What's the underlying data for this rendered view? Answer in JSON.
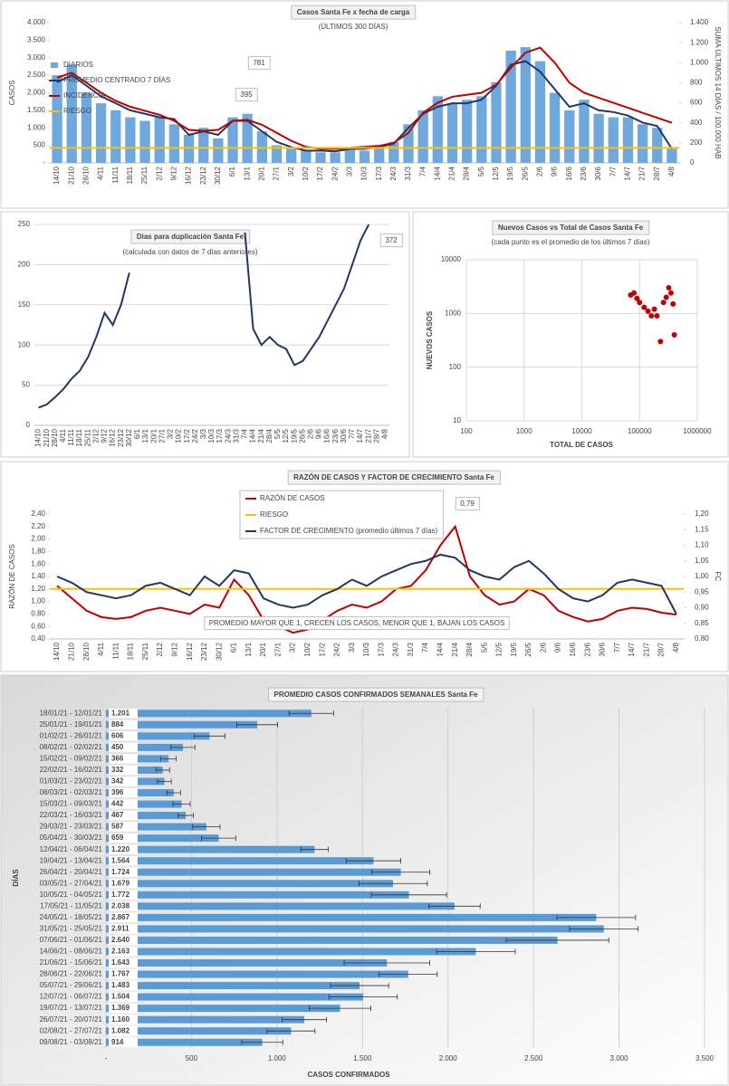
{
  "chart_data": [
    {
      "type": "combo",
      "title": "Casos Santa Fe x fecha de carga",
      "subtitle": "(ÚLTIMOS 300 DÍAS)",
      "y_label": "CASOS",
      "y2_label": "SUMA ÚLTIMOS 14 DÍAS / 100.000 HAB",
      "categories": [
        "14/10",
        "21/10",
        "28/10",
        "4/11",
        "11/11",
        "18/11",
        "25/11",
        "2/12",
        "9/12",
        "16/12",
        "23/12",
        "30/12",
        "6/1",
        "13/1",
        "20/1",
        "27/1",
        "3/2",
        "10/2",
        "17/2",
        "24/2",
        "3/3",
        "10/3",
        "17/3",
        "24/3",
        "31/3",
        "7/4",
        "14/4",
        "21/4",
        "28/4",
        "5/5",
        "12/5",
        "19/5",
        "26/5",
        "2/6",
        "9/6",
        "16/6",
        "23/6",
        "30/6",
        "7/7",
        "14/7",
        "21/7",
        "28/7",
        "4/8"
      ],
      "series": [
        {
          "name": "DIARIOS",
          "type": "bar",
          "color": "#6fa8dc",
          "values": [
            2500,
            2800,
            2000,
            1700,
            1500,
            1300,
            1200,
            1300,
            1100,
            800,
            1000,
            700,
            1300,
            1400,
            900,
            500,
            400,
            350,
            300,
            300,
            400,
            350,
            450,
            600,
            1100,
            1500,
            1900,
            1700,
            1800,
            1900,
            2300,
            3200,
            3300,
            2900,
            2000,
            1500,
            1800,
            1400,
            1300,
            1300,
            1100,
            1000,
            400
          ]
        },
        {
          "name": "PROMEDIO CENTRADO 7 DÍAS",
          "type": "line",
          "color": "#1f3864",
          "values": [
            2300,
            2500,
            2200,
            1900,
            1700,
            1500,
            1400,
            1300,
            1250,
            800,
            900,
            800,
            1200,
            1200,
            900,
            600,
            450,
            350,
            350,
            330,
            400,
            400,
            450,
            550,
            1000,
            1400,
            1600,
            1700,
            1700,
            1800,
            2200,
            2800,
            2900,
            2600,
            2100,
            1600,
            1700,
            1500,
            1450,
            1350,
            1150,
            1050,
            400
          ]
        },
        {
          "name": "INCIDENCIA",
          "type": "line",
          "axis": "y2",
          "color": "#c00000",
          "values": [
            850,
            900,
            800,
            700,
            620,
            560,
            520,
            480,
            420,
            330,
            320,
            330,
            420,
            430,
            380,
            300,
            220,
            160,
            140,
            140,
            150,
            160,
            170,
            200,
            300,
            500,
            600,
            660,
            680,
            700,
            780,
            950,
            1100,
            1150,
            1000,
            800,
            700,
            650,
            600,
            550,
            500,
            450,
            400
          ]
        },
        {
          "name": "RIESGO",
          "type": "hline",
          "color": "#ffc000",
          "value": 430
        }
      ],
      "ylim": [
        0,
        4000
      ],
      "yticks": [
        {
          "value": 0,
          "label": "-"
        },
        500,
        {
          "value": 1000,
          "label": "1.000"
        },
        {
          "value": 1500,
          "label": "1.500"
        },
        {
          "value": 2000,
          "label": "2.000"
        },
        {
          "value": 2500,
          "label": "2.500"
        },
        {
          "value": 3000,
          "label": "3.000"
        },
        {
          "value": 3500,
          "label": "3.500"
        },
        {
          "value": 4000,
          "label": "4.000"
        }
      ],
      "y2lim": [
        0,
        1400
      ],
      "y2ticks": [
        0,
        200,
        400,
        600,
        800,
        {
          "value": 1000,
          "label": "1.000"
        },
        {
          "value": 1200,
          "label": "1.200"
        },
        {
          "value": 1400,
          "label": "1.400"
        }
      ],
      "grid": false,
      "legend": "top-left",
      "annotations": [
        "781",
        "395"
      ]
    },
    {
      "type": "line",
      "title": "Dias para duplicación Santa Fe",
      "subtitle": "(calculada con datos de 7 días anteriores)",
      "categories": [
        "14/10",
        "21/10",
        "28/10",
        "4/11",
        "11/11",
        "18/11",
        "25/11",
        "2/12",
        "9/12",
        "16/12",
        "23/12",
        "30/12",
        "6/1",
        "13/1",
        "20/1",
        "27/1",
        "3/2",
        "10/2",
        "17/2",
        "24/2",
        "3/3",
        "10/3",
        "17/3",
        "24/3",
        "31/3",
        "7/4",
        "14/4",
        "21/4",
        "28/4",
        "5/5",
        "12/5",
        "19/5",
        "26/5",
        "2/6",
        "9/6",
        "16/6",
        "23/6",
        "30/6",
        "7/7",
        "14/7",
        "21/7",
        "28/7",
        "4/8"
      ],
      "values": [
        22,
        26,
        35,
        45,
        58,
        68,
        85,
        110,
        140,
        125,
        150,
        190,
        null,
        null,
        null,
        null,
        null,
        null,
        null,
        null,
        null,
        null,
        null,
        null,
        null,
        240,
        120,
        100,
        110,
        100,
        95,
        75,
        80,
        95,
        110,
        130,
        150,
        170,
        200,
        230,
        250,
        null,
        null
      ],
      "color": "#1f3864",
      "ylim": [
        0,
        250
      ],
      "yticks": [
        0,
        50,
        100,
        150,
        200,
        250
      ],
      "grid": true,
      "annotations": [
        "372"
      ]
    },
    {
      "type": "scatter",
      "title": "Nuevos Casos vs Total de Casos Santa Fe",
      "subtitle": "(cada punto es el promedio de los últimos 7 días)",
      "x_label": "TOTAL DE CASOS",
      "y_label": "NUEVOS CASOS",
      "x": [
        70000,
        80000,
        90000,
        100000,
        120000,
        140000,
        160000,
        180000,
        200000,
        230000,
        260000,
        290000,
        320000,
        350000,
        380000,
        400000
      ],
      "y": [
        2200,
        2400,
        1900,
        1600,
        1300,
        1100,
        900,
        1200,
        900,
        300,
        1600,
        2000,
        3000,
        2400,
        1500,
        400
      ],
      "color": "#c00000",
      "log_x": true,
      "log_y": true,
      "xlim": [
        100,
        1000000
      ],
      "xticks": [
        100,
        1000,
        10000,
        100000,
        1000000
      ],
      "ylim": [
        10,
        10000
      ],
      "yticks": [
        10,
        100,
        1000,
        10000
      ],
      "grid": true
    },
    {
      "type": "combo",
      "title": "RAZÓN DE CASOS Y FACTOR DE CRECIMIENTO Santa Fe",
      "y_label": "RAZÓN DE CASOS",
      "y2_label": "FC",
      "categories": [
        "14/10",
        "21/10",
        "28/10",
        "4/11",
        "11/11",
        "18/11",
        "25/11",
        "2/12",
        "9/12",
        "16/12",
        "23/12",
        "30/12",
        "6/1",
        "13/1",
        "20/1",
        "27/1",
        "3/2",
        "10/2",
        "17/2",
        "24/2",
        "3/3",
        "10/3",
        "17/3",
        "24/3",
        "31/3",
        "7/4",
        "14/4",
        "21/4",
        "28/4",
        "5/5",
        "12/5",
        "19/5",
        "26/5",
        "2/6",
        "9/6",
        "16/6",
        "23/6",
        "30/6",
        "7/7",
        "14/7",
        "21/7",
        "28/7",
        "4/8"
      ],
      "series": [
        {
          "name": "RAZÓN DE CASOS",
          "type": "line",
          "color": "#c00000",
          "values": [
            1.25,
            1.05,
            0.85,
            0.75,
            0.72,
            0.75,
            0.85,
            0.9,
            0.85,
            0.8,
            0.95,
            0.9,
            1.35,
            1.1,
            0.7,
            0.6,
            0.5,
            0.55,
            0.7,
            0.85,
            0.95,
            0.9,
            1.0,
            1.2,
            1.25,
            1.5,
            1.9,
            2.2,
            1.4,
            1.1,
            0.95,
            1.0,
            1.2,
            1.1,
            0.85,
            0.75,
            0.68,
            0.72,
            0.85,
            0.9,
            0.88,
            0.82,
            0.79
          ]
        },
        {
          "name": "RIESGO",
          "type": "hline",
          "color": "#ffc000",
          "value": 1.2
        },
        {
          "name": "FACTOR DE CRECIMIENTO (promedio últimos 7 días)",
          "type": "line",
          "axis": "y2",
          "color": "#1f3864",
          "values": [
            1.0,
            0.98,
            0.95,
            0.94,
            0.93,
            0.94,
            0.97,
            0.98,
            0.96,
            0.94,
            1.0,
            0.97,
            1.02,
            1.01,
            0.93,
            0.91,
            0.9,
            0.91,
            0.94,
            0.96,
            0.99,
            0.97,
            1.0,
            1.02,
            1.04,
            1.05,
            1.07,
            1.06,
            1.02,
            1.0,
            0.99,
            1.03,
            1.05,
            1.01,
            0.96,
            0.93,
            0.92,
            0.94,
            0.98,
            0.99,
            0.98,
            0.97,
            0.88
          ]
        }
      ],
      "ylim": [
        0.4,
        2.4
      ],
      "yticks": [
        {
          "value": 0.4,
          "label": "0,40"
        },
        {
          "value": 0.6,
          "label": "0,60"
        },
        {
          "value": 0.8,
          "label": "0,80"
        },
        {
          "value": 1.0,
          "label": "1,00"
        },
        {
          "value": 1.2,
          "label": "1,20"
        },
        {
          "value": 1.4,
          "label": "1,40"
        },
        {
          "value": 1.6,
          "label": "1,60"
        },
        {
          "value": 1.8,
          "label": "1,80"
        },
        {
          "value": 2.0,
          "label": "2,00"
        },
        {
          "value": 2.2,
          "label": "2,20"
        },
        {
          "value": 2.4,
          "label": "2,40"
        }
      ],
      "y2lim": [
        0.8,
        1.2
      ],
      "y2ticks": [
        {
          "value": 0.8,
          "label": "0,80"
        },
        {
          "value": 0.85,
          "label": "0,85"
        },
        {
          "value": 0.9,
          "label": "0,90"
        },
        {
          "value": 0.95,
          "label": "0,95"
        },
        {
          "value": 1.0,
          "label": "1,00"
        },
        {
          "value": 1.05,
          "label": "1,05"
        },
        {
          "value": 1.1,
          "label": "1,10"
        },
        {
          "value": 1.15,
          "label": "1,15"
        },
        {
          "value": 1.2,
          "label": "1,20"
        }
      ],
      "grid": false,
      "legend": "top-center",
      "annotations": [
        "0,79",
        "PROMEDIO MAYOR QUE 1, CRECEN LOS CASOS, MENOR QUE 1, BAJAN LOS CASOS"
      ]
    },
    {
      "type": "hbar",
      "title": "PROMEDIO CASOS CONFIRMADOS SEMANALES Santa Fe",
      "x_label": "CASOS CONFIRMADOS",
      "y_label": "DÍAS",
      "categories": [
        "18/01/21 - 12/01/21",
        "25/01/21 - 19/01/21",
        "01/02/21 - 26/01/21",
        "08/02/21 - 02/02/21",
        "15/02/21 - 09/02/21",
        "22/02/21 - 16/02/21",
        "01/03/21 - 23/02/21",
        "08/03/21 - 02/03/21",
        "15/03/21 - 09/03/21",
        "22/03/21 - 16/03/21",
        "29/03/21 - 23/03/21",
        "05/04/21 - 30/03/21",
        "12/04/21 - 06/04/21",
        "19/04/21 - 13/04/21",
        "26/04/21 - 20/04/21",
        "03/05/21 - 27/04/21",
        "10/05/21 - 04/05/21",
        "17/05/21 - 11/05/21",
        "24/05/21 - 18/05/21",
        "31/05/21 - 25/05/21",
        "07/06/21 - 01/06/21",
        "14/06/21 - 08/06/21",
        "21/06/21 - 15/06/21",
        "28/06/21 - 22/06/21",
        "05/07/21 - 29/06/21",
        "12/07/21 - 06/07/21",
        "19/07/21 - 13/07/21",
        "26/07/21 - 20/07/21",
        "02/08/21 - 27/07/21",
        "09/08/21 - 03/08/21"
      ],
      "values": [
        1201,
        884,
        606,
        450,
        366,
        332,
        342,
        396,
        442,
        467,
        587,
        659,
        1220,
        1564,
        1724,
        1679,
        1772,
        2038,
        2867,
        2911,
        2640,
        2163,
        1643,
        1767,
        1483,
        1504,
        1369,
        1160,
        1082,
        914
      ],
      "value_labels": [
        "1.201",
        "884",
        "606",
        "450",
        "366",
        "332",
        "342",
        "396",
        "442",
        "467",
        "587",
        "659",
        "1.220",
        "1.564",
        "1.724",
        "1.679",
        "1.772",
        "2.038",
        "2.867",
        "2.911",
        "2.640",
        "2.163",
        "1.643",
        "1.767",
        "1.483",
        "1.504",
        "1.369",
        "1.160",
        "1.082",
        "914"
      ],
      "errors": [
        130,
        120,
        90,
        70,
        45,
        40,
        40,
        40,
        50,
        45,
        80,
        100,
        80,
        160,
        170,
        200,
        220,
        150,
        230,
        200,
        300,
        230,
        250,
        170,
        170,
        200,
        180,
        130,
        140,
        120
      ],
      "color": "#5b9bd5",
      "xlim": [
        0,
        3500
      ],
      "xticks": [
        {
          "value": 0,
          "label": "-"
        },
        500,
        {
          "value": 1000,
          "label": "1.000"
        },
        {
          "value": 1500,
          "label": "1.500"
        },
        {
          "value": 2000,
          "label": "2.000"
        },
        {
          "value": 2500,
          "label": "2.500"
        },
        {
          "value": 3000,
          "label": "3.000"
        },
        {
          "value": 3500,
          "label": "3.500"
        }
      ],
      "grid": true
    }
  ]
}
